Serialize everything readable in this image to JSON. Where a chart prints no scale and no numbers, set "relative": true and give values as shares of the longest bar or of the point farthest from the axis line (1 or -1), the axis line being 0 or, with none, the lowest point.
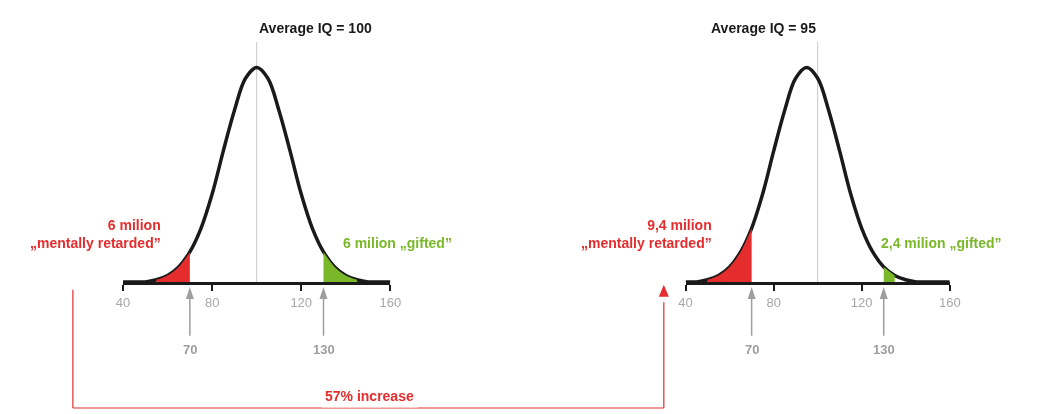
{
  "chart_data": [
    {
      "type": "line",
      "title": "Average IQ = 100",
      "relative": true,
      "xlim": [
        40,
        160
      ],
      "xticks": [
        40,
        80,
        120,
        160
      ],
      "tick_labels": "x",
      "marker": "none",
      "line_style": "solid",
      "series": [
        {
          "type": "line",
          "color": "#1a1a1a",
          "x": [
            40,
            45,
            50,
            55,
            60,
            65,
            70,
            75,
            80,
            85,
            90,
            95,
            100,
            105,
            110,
            115,
            120,
            125,
            130,
            135,
            140,
            145,
            150,
            155,
            160
          ],
          "values": [
            0,
            0,
            0,
            0.01,
            0.03,
            0.07,
            0.14,
            0.25,
            0.41,
            0.61,
            0.8,
            0.95,
            1,
            0.95,
            0.8,
            0.61,
            0.41,
            0.25,
            0.14,
            0.07,
            0.03,
            0.01,
            0,
            0,
            0
          ]
        },
        {
          "type": "area",
          "color": "#e52d2d",
          "x": [
            55,
            60,
            65,
            70
          ],
          "values": [
            0.01,
            0.03,
            0.07,
            0.14
          ]
        },
        {
          "type": "area",
          "color": "#7ab829",
          "x": [
            130,
            135,
            140,
            145
          ],
          "values": [
            0.14,
            0.07,
            0.03,
            0.01
          ]
        }
      ],
      "ref_lines": [
        {
          "axis": "x",
          "value": 100,
          "color": "#c8c8c8"
        },
        {
          "axis": "x",
          "value": 70,
          "label": "70",
          "color": "#9e9e9e"
        },
        {
          "axis": "x",
          "value": 130,
          "label": "130",
          "color": "#9e9e9e"
        }
      ],
      "annotations": [
        "6 milion\n„mentally retarded”",
        "6 milion „gifted”"
      ]
    },
    {
      "type": "line",
      "title": "Average IQ = 95",
      "relative": true,
      "xlim": [
        40,
        160
      ],
      "xticks": [
        40,
        80,
        120,
        160
      ],
      "tick_labels": "x",
      "marker": "none",
      "line_style": "solid",
      "series": [
        {
          "type": "line",
          "color": "#1a1a1a",
          "x": [
            40,
            45,
            50,
            55,
            60,
            65,
            70,
            75,
            80,
            85,
            90,
            95,
            100,
            105,
            110,
            115,
            120,
            125,
            130,
            135,
            140,
            145,
            150,
            155,
            160
          ],
          "values": [
            0,
            0,
            0.01,
            0.03,
            0.07,
            0.14,
            0.25,
            0.41,
            0.61,
            0.8,
            0.95,
            1,
            0.95,
            0.8,
            0.61,
            0.41,
            0.25,
            0.14,
            0.07,
            0.03,
            0.01,
            0,
            0,
            0,
            0
          ]
        },
        {
          "type": "area",
          "color": "#e52d2d",
          "x": [
            50,
            55,
            60,
            65,
            70
          ],
          "values": [
            0.01,
            0.03,
            0.07,
            0.14,
            0.25
          ]
        },
        {
          "type": "area",
          "color": "#7ab829",
          "x": [
            130,
            135
          ],
          "values": [
            0.07,
            0.03
          ]
        }
      ],
      "ref_lines": [
        {
          "axis": "x",
          "value": 100,
          "color": "#c8c8c8"
        },
        {
          "axis": "x",
          "value": 70,
          "label": "70",
          "color": "#9e9e9e"
        },
        {
          "axis": "x",
          "value": 130,
          "label": "130",
          "color": "#9e9e9e"
        }
      ],
      "annotations": [
        "9,4 milion\n„mentally retarded”",
        "2,4 milion „gifted”"
      ]
    },
    {
      "type": "other",
      "annotations": [
        "57% increase"
      ]
    }
  ]
}
